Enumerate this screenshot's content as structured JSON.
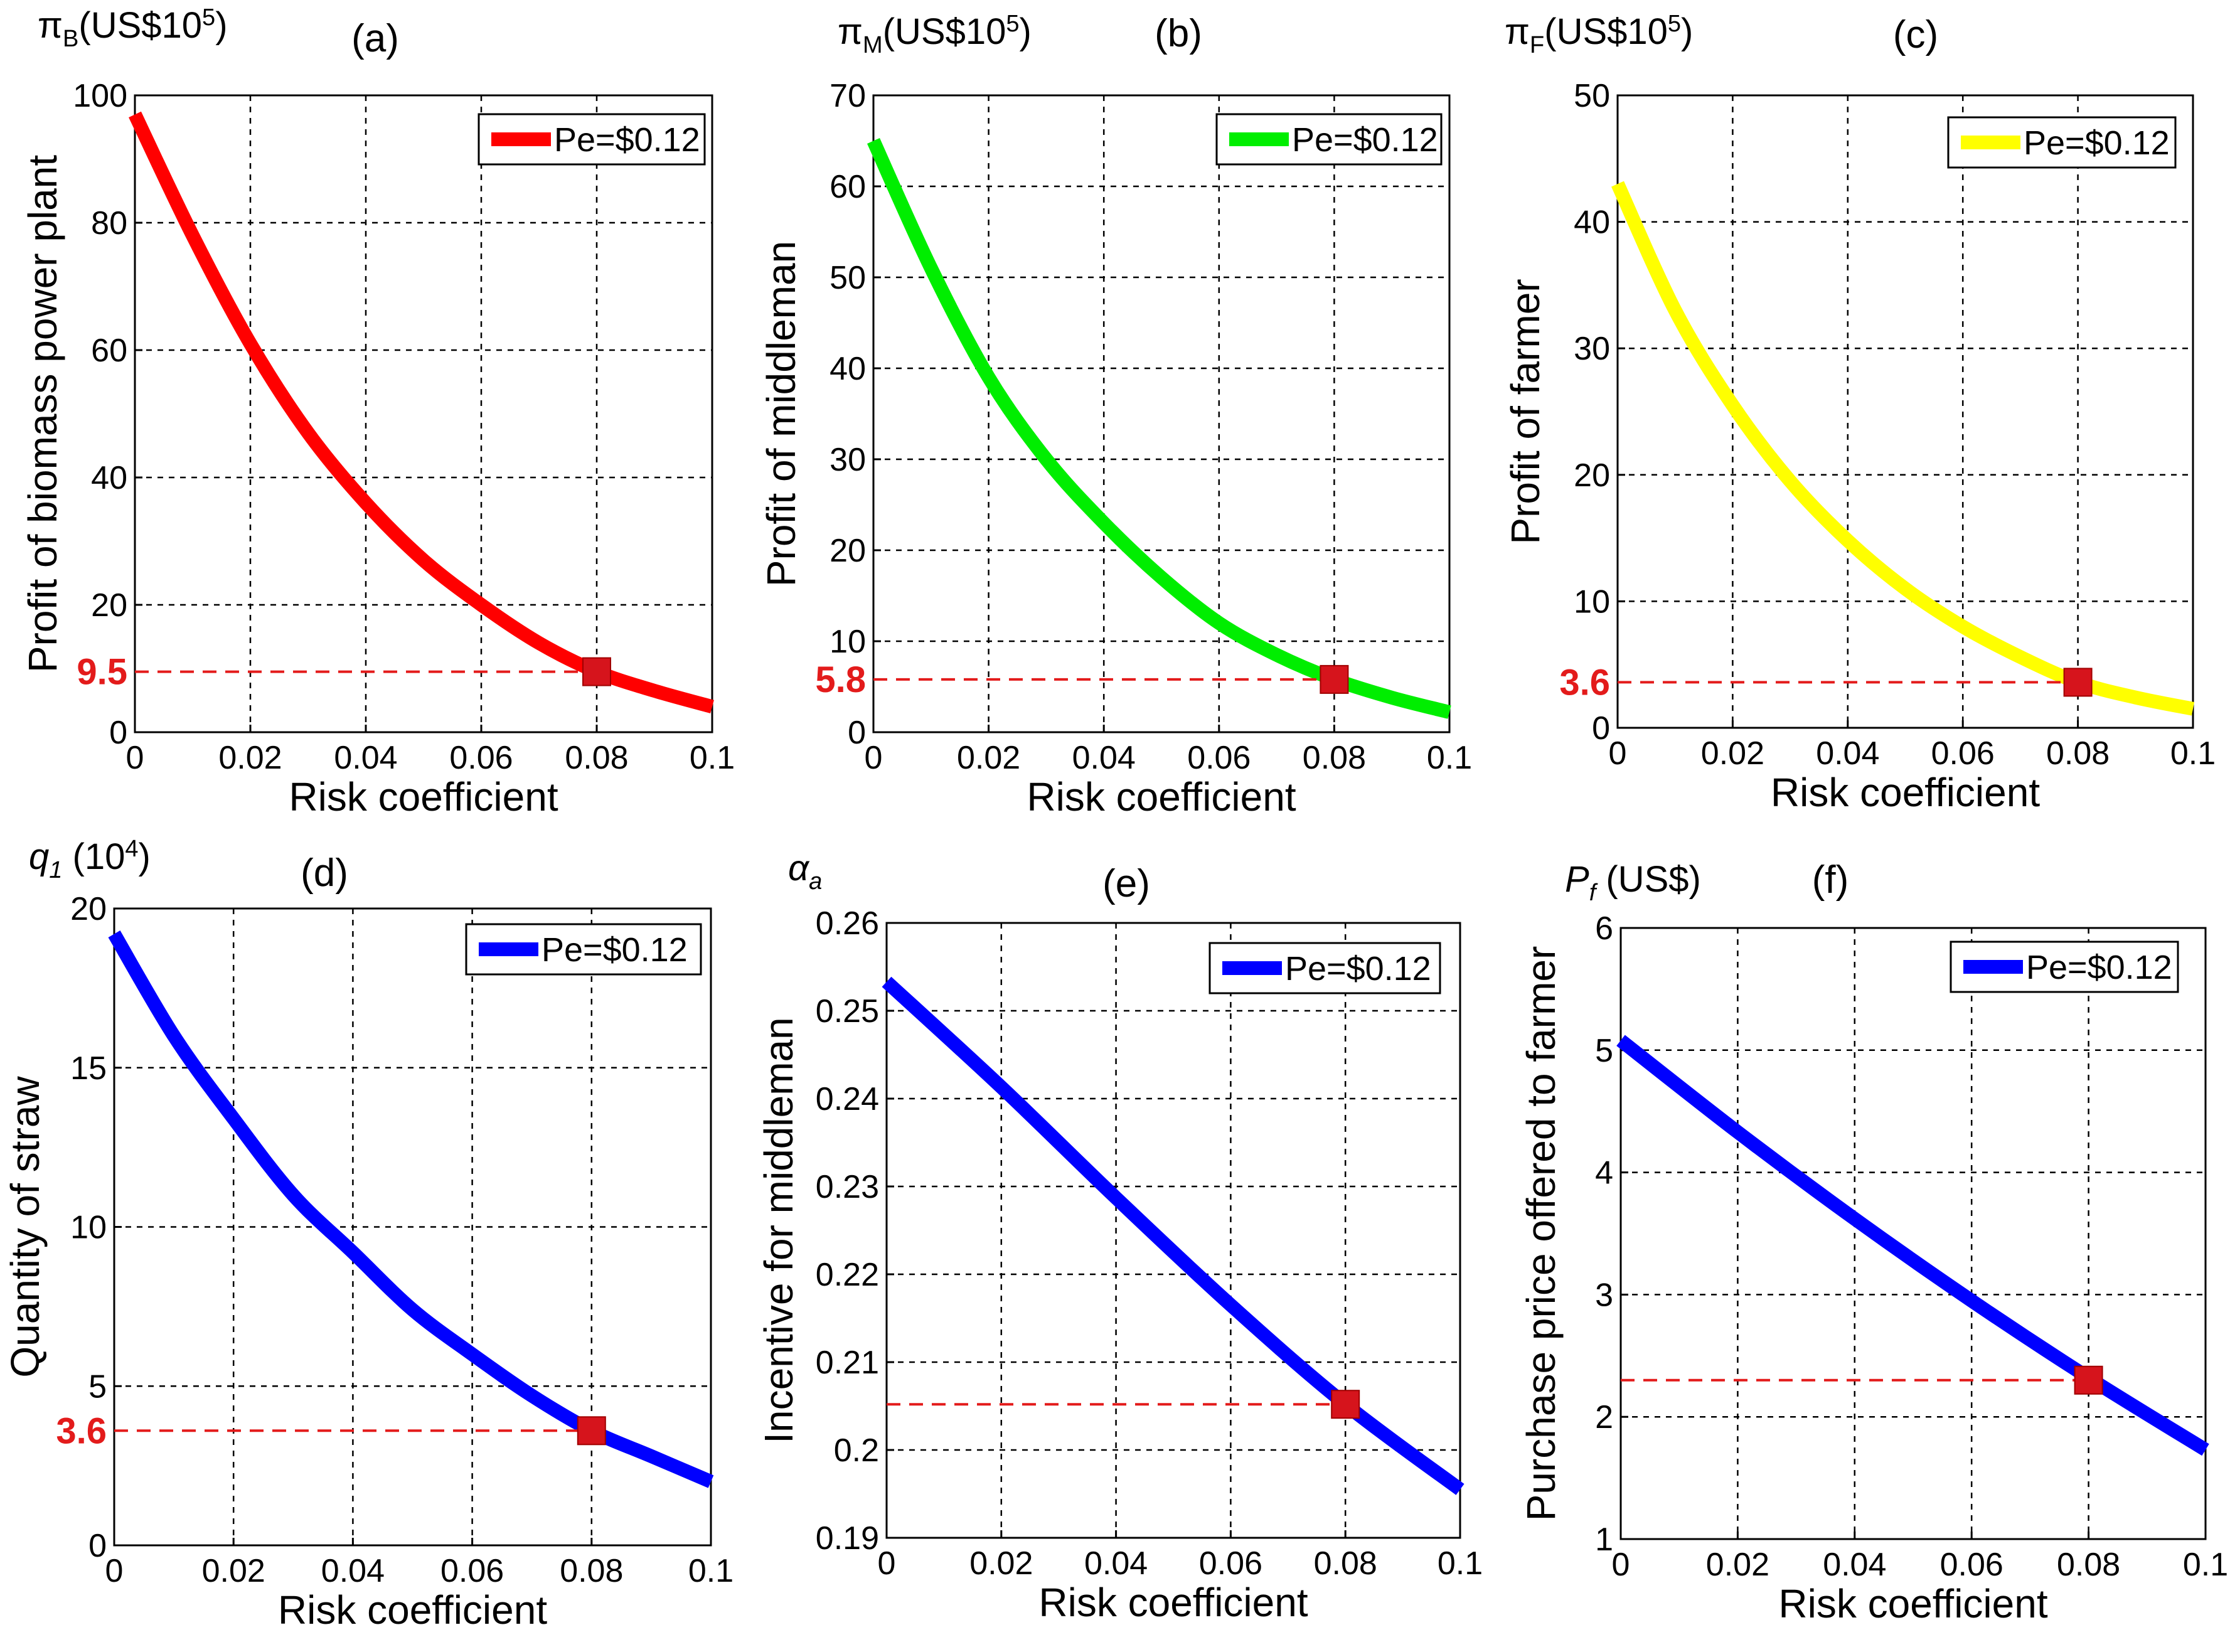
{
  "chart_data": [
    {
      "type": "line",
      "panel": "(a)",
      "unit_label": "π_B(US$10^5)",
      "unit_main": "π",
      "unit_sub": "B",
      "unit_rest": "(US$10",
      "unit_exp": "5",
      "unit_close": ")",
      "xlabel": "Risk coefficient",
      "ylabel": "Profit of biomass power plant",
      "xlim": [
        0,
        0.1
      ],
      "ylim": [
        0,
        100
      ],
      "x_ticks": [
        "0",
        "0.02",
        "0.04",
        "0.06",
        "0.08",
        "0.1"
      ],
      "y_ticks": [
        "0",
        "20",
        "40",
        "60",
        "80",
        "100"
      ],
      "series": [
        {
          "name": "Pe=$0.12",
          "color": "#ff0000",
          "x": [
            0,
            0.01,
            0.02,
            0.03,
            0.04,
            0.05,
            0.06,
            0.07,
            0.08,
            0.09,
            0.1
          ],
          "values": [
            97,
            78,
            61,
            47,
            36,
            27,
            20,
            14,
            9.5,
            6.5,
            4
          ]
        }
      ],
      "marker": {
        "x": 0.08,
        "y": 9.5,
        "label": "9.5"
      }
    },
    {
      "type": "line",
      "panel": "(b)",
      "unit_label": "π_M(US$10^5)",
      "unit_main": "π",
      "unit_sub": "M",
      "unit_rest": "(US$10",
      "unit_exp": "5",
      "unit_close": ")",
      "xlabel": "Risk coefficient",
      "ylabel": "Profit of middleman",
      "xlim": [
        0,
        0.1
      ],
      "ylim": [
        0,
        70
      ],
      "x_ticks": [
        "0",
        "0.02",
        "0.04",
        "0.06",
        "0.08",
        "0.1"
      ],
      "y_ticks": [
        "0",
        "10",
        "20",
        "30",
        "40",
        "50",
        "60",
        "70"
      ],
      "series": [
        {
          "name": "Pe=$0.12",
          "color": "#00ee00",
          "x": [
            0,
            0.01,
            0.02,
            0.03,
            0.04,
            0.05,
            0.06,
            0.07,
            0.08,
            0.09,
            0.1
          ],
          "values": [
            65,
            51,
            39,
            30,
            23,
            17,
            12,
            8.5,
            5.8,
            3.8,
            2.2
          ]
        }
      ],
      "marker": {
        "x": 0.08,
        "y": 5.8,
        "label": "5.8"
      }
    },
    {
      "type": "line",
      "panel": "(c)",
      "unit_label": "π_F(US$10^5)",
      "unit_main": "π",
      "unit_sub": "F",
      "unit_rest": "(US$10",
      "unit_exp": "5",
      "unit_close": ")",
      "xlabel": "Risk coefficient",
      "ylabel": "Profit of farmer",
      "xlim": [
        0,
        0.1
      ],
      "ylim": [
        0,
        50
      ],
      "x_ticks": [
        "0",
        "0.02",
        "0.04",
        "0.06",
        "0.08",
        "0.1"
      ],
      "y_ticks": [
        "0",
        "10",
        "20",
        "30",
        "40",
        "50"
      ],
      "series": [
        {
          "name": "Pe=$0.12",
          "color": "#ffff00",
          "x": [
            0,
            0.01,
            0.02,
            0.03,
            0.04,
            0.05,
            0.06,
            0.07,
            0.08,
            0.09,
            0.1
          ],
          "values": [
            43,
            33,
            25.5,
            19.5,
            14.8,
            11,
            8,
            5.6,
            3.6,
            2.4,
            1.5
          ]
        }
      ],
      "marker": {
        "x": 0.08,
        "y": 3.6,
        "label": "3.6"
      }
    },
    {
      "type": "line",
      "panel": "(d)",
      "unit_label": "q_1 (10^4)",
      "unit_main": "q",
      "unit_sub": "1",
      "unit_rest": " (10",
      "unit_exp": "4",
      "unit_close": ")",
      "xlabel": "Risk coefficient",
      "ylabel": "Quantity of straw",
      "xlim": [
        0,
        0.1
      ],
      "ylim": [
        0,
        20
      ],
      "x_ticks": [
        "0",
        "0.02",
        "0.04",
        "0.06",
        "0.08",
        "0.1"
      ],
      "y_ticks": [
        "0",
        "5",
        "10",
        "15",
        "20"
      ],
      "series": [
        {
          "name": "Pe=$0.12",
          "color": "#0000ff",
          "x": [
            0,
            0.01,
            0.02,
            0.03,
            0.04,
            0.05,
            0.06,
            0.07,
            0.08,
            0.09,
            0.1
          ],
          "values": [
            19.2,
            16,
            13.4,
            11,
            9.2,
            7.4,
            6,
            4.7,
            3.6,
            2.8,
            2
          ]
        }
      ],
      "marker": {
        "x": 0.08,
        "y": 3.6,
        "label": "3.6"
      }
    },
    {
      "type": "line",
      "panel": "(e)",
      "unit_label": "α_a",
      "unit_main": "α",
      "unit_sub": "a",
      "unit_rest": "",
      "unit_exp": "",
      "unit_close": "",
      "xlabel": "Risk coefficient",
      "ylabel": "Incentive for middleman",
      "xlim": [
        0,
        0.1
      ],
      "ylim": [
        0.19,
        0.26
      ],
      "x_ticks": [
        "0",
        "0.02",
        "0.04",
        "0.06",
        "0.08",
        "0.1"
      ],
      "y_ticks": [
        "0.19",
        "0.2",
        "0.21",
        "0.22",
        "0.23",
        "0.24",
        "0.25",
        "0.26"
      ],
      "series": [
        {
          "name": "Pe=$0.12",
          "color": "#0000ff",
          "x": [
            0,
            0.02,
            0.04,
            0.06,
            0.08,
            0.1
          ],
          "values": [
            0.2533,
            0.2413,
            0.2287,
            0.2165,
            0.2052,
            0.1955
          ]
        }
      ],
      "marker": {
        "x": 0.08,
        "y": 0.2052,
        "label": ""
      }
    },
    {
      "type": "line",
      "panel": "(f)",
      "unit_label": "P_f (US$)",
      "unit_main": "P",
      "unit_sub": "f",
      "unit_rest": "   (US$)",
      "unit_exp": "",
      "unit_close": "",
      "xlabel": "Risk coefficient",
      "ylabel": "Purchase price offered to farmer",
      "xlim": [
        0,
        0.1
      ],
      "ylim": [
        1,
        6
      ],
      "x_ticks": [
        "0",
        "0.02",
        "0.04",
        "0.06",
        "0.08",
        "0.1"
      ],
      "y_ticks": [
        "1",
        "2",
        "3",
        "4",
        "5",
        "6"
      ],
      "series": [
        {
          "name": "Pe=$0.12",
          "color": "#0000ff",
          "x": [
            0,
            0.02,
            0.04,
            0.06,
            0.08,
            0.1
          ],
          "values": [
            5.08,
            4.33,
            3.62,
            2.95,
            2.32,
            1.73
          ]
        }
      ],
      "marker": {
        "x": 0.08,
        "y": 2.3,
        "label": ""
      }
    }
  ]
}
